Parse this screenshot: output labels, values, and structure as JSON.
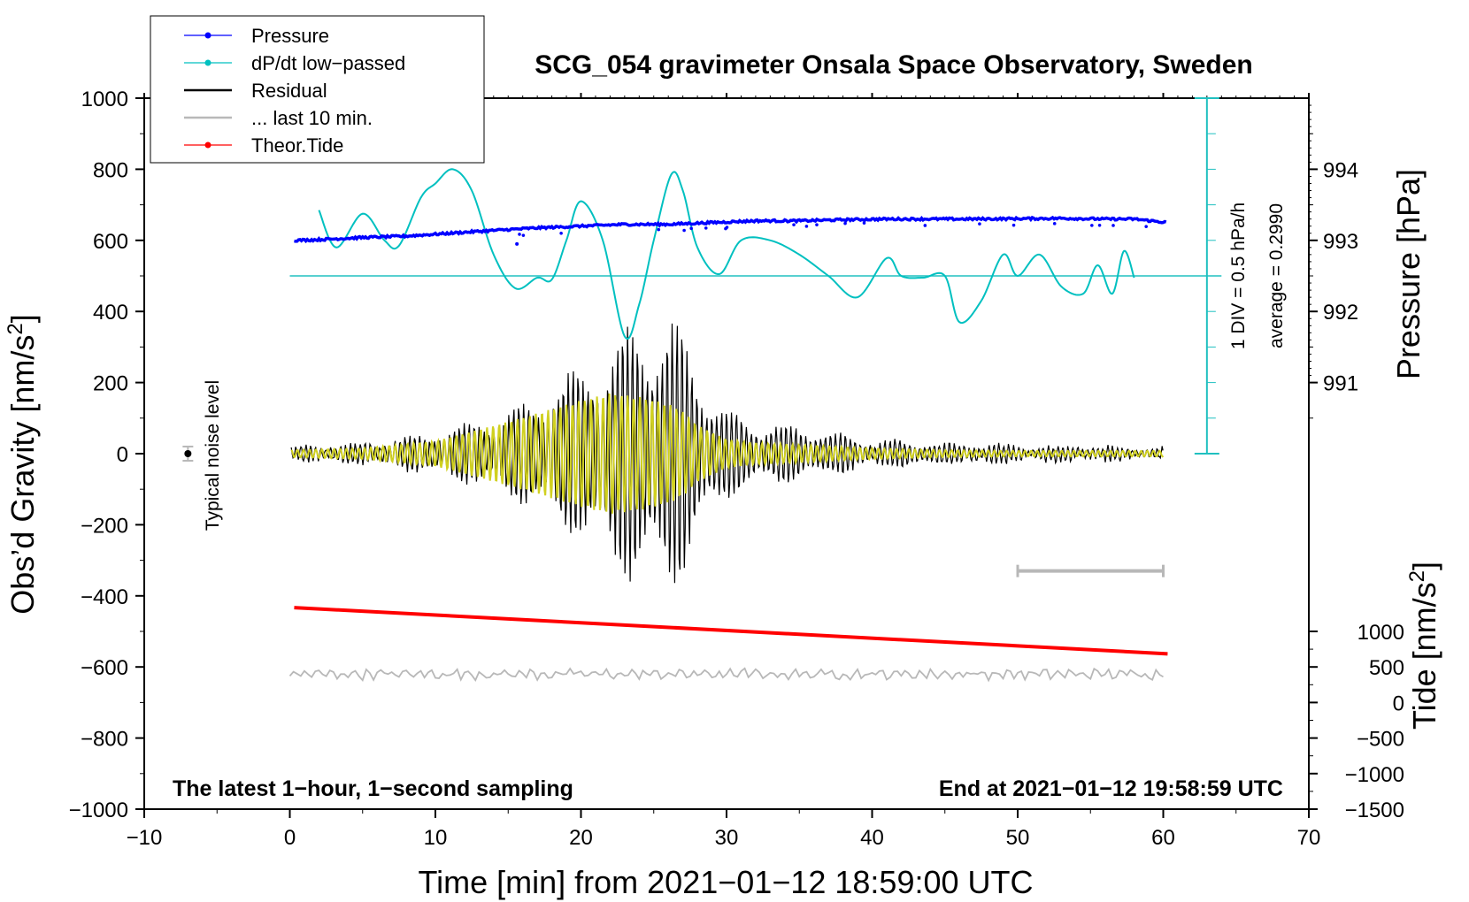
{
  "chart_data": {
    "type": "line",
    "title": "SCG_054 gravimeter Onsala Space Observatory, Sweden",
    "xlabel": "Time [min] from 2021−01−12 18:59:00 UTC",
    "ylabel": "Obs’d Gravity [nm/s²]",
    "ylabel_main": "Obs’d Gravity [nm/s",
    "ylabel_sup": "2",
    "ylabel_close": "]",
    "xlim": [
      -10,
      70
    ],
    "ylim": [
      -1000,
      1000
    ],
    "x_ticks": [
      -10,
      0,
      10,
      20,
      30,
      40,
      50,
      60,
      70
    ],
    "x_tick_labels": [
      "−10",
      "0",
      "10",
      "20",
      "30",
      "40",
      "50",
      "60",
      "70"
    ],
    "y_ticks": [
      -1000,
      -800,
      -600,
      -400,
      -200,
      0,
      200,
      400,
      600,
      800,
      1000
    ],
    "y_tick_labels": [
      "−1000",
      "−800",
      "−600",
      "−400",
      "−200",
      "0",
      "200",
      "400",
      "600",
      "800",
      "1000"
    ],
    "right_pressure_axis": {
      "label": "Pressure [hPa]",
      "ticks": [
        991,
        992,
        993,
        994
      ],
      "tick_labels": [
        "991",
        "992",
        "993",
        "994"
      ],
      "gravity_at_991": 200,
      "gravity_per_hPa": 200
    },
    "right_tide_axis": {
      "label_main": "Tide [nm/s",
      "label_sup": "2",
      "label_close": "]",
      "ticks": [
        -1500,
        -1000,
        -500,
        0,
        500,
        1000
      ],
      "tick_labels": [
        "−1500",
        "−1000",
        "−500",
        "0",
        "500",
        "1000"
      ],
      "gravity_at_minus1500": -1000,
      "gravity_per_unit": 0.2
    },
    "dpdt_scale": {
      "label": "1 DIV = 0.5 hPa/h",
      "average_label": "average = 0.2990",
      "baseline_gravity": 500,
      "scale_x_min": 63,
      "div_ticks": [
        0,
        100,
        200,
        300,
        400,
        500,
        600,
        700,
        800,
        900,
        1000
      ]
    },
    "noise_marker": {
      "label": "Typical noise level",
      "x": -7,
      "y": 0,
      "err": 20
    },
    "last10_bar": {
      "x_start": 50,
      "x_end": 60,
      "y": -330
    },
    "notes": {
      "left": "The latest 1−hour, 1−second sampling",
      "right": "End at 2021−01−12 19:58:59 UTC"
    },
    "legend": [
      {
        "label": "Pressure",
        "color": "#0000ff",
        "marker": true
      },
      {
        "label": "dP/dt low−passed",
        "color": "#00c0c0",
        "marker": true
      },
      {
        "label": "Residual",
        "color": "#000000",
        "marker": false
      },
      {
        "label": "... last 10 min.",
        "color": "#b8b8b8",
        "marker": false
      },
      {
        "label": "Theor.Tide",
        "color": "#ff0000",
        "marker": true
      }
    ],
    "series": [
      {
        "name": "Pressure",
        "color": "#0000ff",
        "x": [
          0.3,
          2,
          5,
          8,
          11,
          14,
          17,
          20,
          23,
          26,
          29,
          32,
          35,
          38,
          41,
          44,
          47,
          50,
          53,
          56,
          58,
          60.3
        ],
        "y": [
          600,
          602,
          608,
          612,
          620,
          628,
          635,
          640,
          645,
          645,
          650,
          655,
          655,
          658,
          660,
          660,
          660,
          661,
          662,
          660,
          660,
          650
        ]
      },
      {
        "name": "dP/dt low-passed",
        "color": "#00c0c0",
        "x": [
          2,
          3.2,
          5,
          6.5,
          7.5,
          9,
          10,
          11.2,
          12.5,
          14,
          15.5,
          17,
          18,
          19,
          20,
          21.5,
          23,
          24,
          25,
          26.2,
          27,
          28,
          29.5,
          31,
          33,
          35,
          37,
          39,
          41,
          42,
          43.5,
          45,
          46,
          47.5,
          49,
          50,
          51.5,
          53,
          54.5,
          55.5,
          56.5,
          57.3,
          58
        ],
        "y": [
          685,
          580,
          675,
          600,
          585,
          720,
          760,
          800,
          740,
          560,
          465,
          495,
          490,
          600,
          710,
          600,
          330,
          420,
          600,
          785,
          740,
          580,
          505,
          600,
          600,
          560,
          500,
          440,
          550,
          500,
          495,
          500,
          370,
          430,
          560,
          500,
          560,
          470,
          450,
          530,
          450,
          570,
          495
        ]
      },
      {
        "name": "Theor.Tide",
        "color": "#ff0000",
        "x": [
          0.3,
          60.3
        ],
        "y": [
          -433,
          -563
        ]
      },
      {
        "name": "Residual",
        "color": "#000000",
        "x": [
          0,
          5,
          10,
          15,
          20,
          22,
          24,
          25,
          26,
          27,
          28,
          30,
          32,
          35,
          40,
          45,
          50,
          55,
          60
        ],
        "envelope": [
          20,
          30,
          60,
          120,
          250,
          330,
          380,
          400,
          420,
          350,
          250,
          130,
          90,
          80,
          40,
          30,
          25,
          20,
          15
        ]
      },
      {
        "name": "Residual smoothed",
        "color": "#d0d020",
        "x": [
          0,
          5,
          10,
          15,
          20,
          22,
          24,
          25,
          26,
          27,
          28,
          30,
          32,
          35,
          40,
          45,
          50,
          55,
          60
        ],
        "envelope": [
          10,
          15,
          35,
          90,
          150,
          170,
          160,
          150,
          140,
          120,
          80,
          40,
          30,
          25,
          15,
          10,
          8,
          8,
          8
        ]
      },
      {
        "name": "... last 10 min.",
        "color": "#b8b8b8",
        "x": [
          0,
          60
        ],
        "y": [
          -620,
          -620
        ],
        "amplitude": 18
      }
    ]
  }
}
